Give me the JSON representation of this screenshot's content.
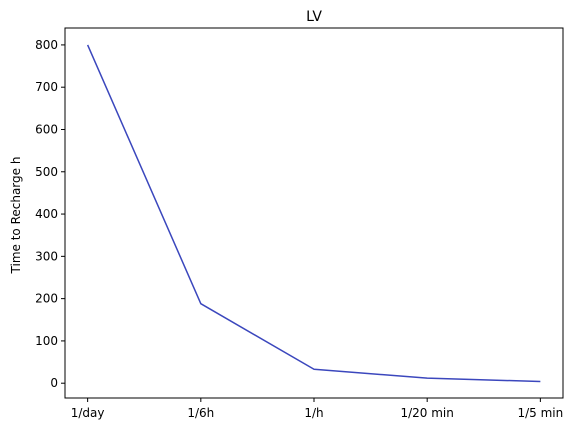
{
  "chart_data": {
    "type": "line",
    "title": "LV",
    "xlabel": "",
    "ylabel": "Time to Recharge h",
    "categories": [
      "1/day",
      "1/6h",
      "1/h",
      "1/20 min",
      "1/5 min"
    ],
    "series": [
      {
        "values": [
          800,
          188,
          33,
          12,
          4
        ],
        "color": "#3b47bd"
      }
    ],
    "ylim": [
      -35,
      840
    ],
    "yticks": [
      0,
      100,
      200,
      300,
      400,
      500,
      600,
      700,
      800
    ],
    "grid": false,
    "legend": "none"
  }
}
